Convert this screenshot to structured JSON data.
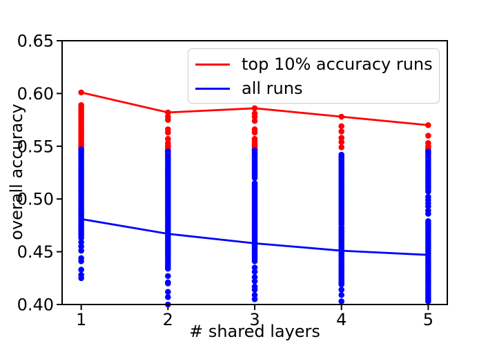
{
  "figure": {
    "xlabel": "# shared layers",
    "ylabel": "overall accuracy"
  },
  "legend": {
    "items": [
      {
        "label": "top 10% accuracy runs",
        "color": "#ff0000"
      },
      {
        "label": "all runs",
        "color": "#0000ff"
      }
    ]
  },
  "chart_data": {
    "type": "scatter",
    "title": "",
    "xlabel": "# shared layers",
    "ylabel": "overall accuracy",
    "x": [
      1,
      2,
      3,
      4,
      5
    ],
    "xlim": [
      0.78,
      5.22
    ],
    "ylim": [
      0.4,
      0.65
    ],
    "x_ticks": [
      1,
      2,
      3,
      4,
      5
    ],
    "x_tick_labels": [
      "1",
      "2",
      "3",
      "4",
      "5"
    ],
    "y_ticks": [
      0.4,
      0.45,
      0.5,
      0.55,
      0.6,
      0.65
    ],
    "y_tick_labels": [
      "0.40",
      "0.45",
      "0.50",
      "0.55",
      "0.60",
      "0.65"
    ],
    "grid": false,
    "legend_position": "upper right",
    "series": [
      {
        "name": "top 10% accuracy runs",
        "color": "#ff0000",
        "line_y": [
          0.601,
          0.582,
          0.586,
          0.578,
          0.57
        ],
        "scatter_columns": [
          {
            "x": 1,
            "dense_ranges": [
              [
                0.547,
                0.589
              ]
            ],
            "dots": [
              0.601
            ]
          },
          {
            "x": 2,
            "dense_ranges": [
              [
                0.545,
                0.553
              ]
            ],
            "dots": [
              0.582,
              0.578,
              0.575,
              0.566,
              0.563,
              0.557
            ]
          },
          {
            "x": 3,
            "dense_ranges": [
              [
                0.547,
                0.558
              ]
            ],
            "dots": [
              0.586,
              0.581,
              0.578,
              0.574,
              0.566,
              0.563
            ]
          },
          {
            "x": 4,
            "dense_ranges": [],
            "dots": [
              0.578,
              0.569,
              0.564,
              0.558,
              0.554,
              0.549
            ]
          },
          {
            "x": 5,
            "dense_ranges": [
              [
                0.544,
                0.55
              ]
            ],
            "dots": [
              0.57,
              0.56,
              0.553
            ]
          }
        ]
      },
      {
        "name": "all runs",
        "color": "#0000ff",
        "line_y": [
          0.481,
          0.467,
          0.458,
          0.451,
          0.447
        ],
        "scatter_columns": [
          {
            "x": 1,
            "dense_ranges": [
              [
                0.463,
                0.547
              ]
            ],
            "dots": [
              0.459,
              0.455,
              0.451,
              0.444,
              0.441,
              0.433,
              0.428,
              0.425
            ]
          },
          {
            "x": 2,
            "dense_ranges": [
              [
                0.435,
                0.545
              ]
            ],
            "dots": [
              0.434,
              0.427,
              0.421,
              0.42,
              0.412,
              0.407,
              0.4
            ]
          },
          {
            "x": 3,
            "dense_ranges": [
              [
                0.52,
                0.547
              ],
              [
                0.441,
                0.516
              ]
            ],
            "dots": [
              0.435,
              0.431,
              0.426,
              0.422,
              0.417,
              0.414,
              0.409,
              0.405
            ]
          },
          {
            "x": 4,
            "dense_ranges": [
              [
                0.518,
                0.542
              ],
              [
                0.476,
                0.516
              ],
              [
                0.421,
                0.474
              ]
            ],
            "dots": [
              0.419,
              0.414,
              0.409,
              0.403
            ]
          },
          {
            "x": 5,
            "dense_ranges": [
              [
                0.507,
                0.545
              ],
              [
                0.403,
                0.479
              ]
            ],
            "dots": [
              0.502,
              0.499,
              0.496,
              0.493,
              0.489,
              0.486
            ]
          }
        ]
      }
    ]
  }
}
